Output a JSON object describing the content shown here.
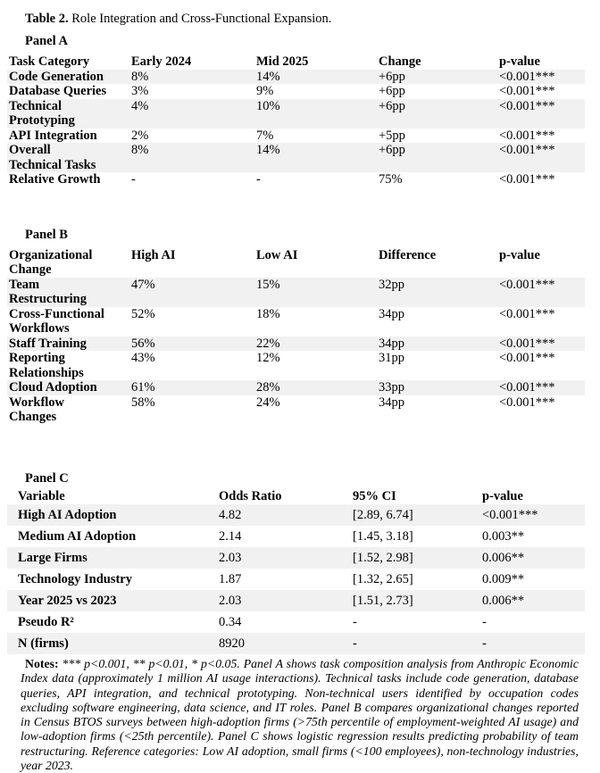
{
  "title": {
    "label": "Table 2.",
    "text": "Role Integration and Cross-Functional Expansion."
  },
  "colors": {
    "background": "#ffffff",
    "text": "#000000",
    "row_shading": "#f1f1f1"
  },
  "panels": [
    {
      "label": "Panel A",
      "columns": [
        "Task Category",
        "Early 2024",
        "Mid 2025",
        "Change",
        "p-value"
      ],
      "rows": [
        {
          "shaded": true,
          "cells": [
            "Code Generation",
            "8%",
            "14%",
            "+6pp",
            "<0.001***"
          ]
        },
        {
          "shaded": false,
          "cells": [
            "Database Queries",
            "3%",
            "9%",
            "+6pp",
            "<0.001***"
          ]
        },
        {
          "shaded": true,
          "cells": [
            "Technical\nPrototyping",
            "4%",
            "10%",
            "+6pp",
            "<0.001***"
          ]
        },
        {
          "shaded": false,
          "cells": [
            "API Integration",
            "2%",
            "7%",
            "+5pp",
            "<0.001***"
          ]
        },
        {
          "shaded": true,
          "cells": [
            "Overall\nTechnical Tasks",
            "8%",
            "14%",
            "+6pp",
            "<0.001***"
          ]
        },
        {
          "shaded": false,
          "cells": [
            "Relative Growth",
            "-",
            "-",
            "75%",
            "<0.001***"
          ]
        }
      ]
    },
    {
      "label": "Panel B",
      "columns": [
        "Organizational\nChange",
        "High AI",
        "Low AI",
        "Difference",
        "p-value"
      ],
      "rows": [
        {
          "shaded": true,
          "cells": [
            "Team\nRestructuring",
            "47%",
            "15%",
            "32pp",
            "<0.001***"
          ]
        },
        {
          "shaded": false,
          "cells": [
            "Cross-Functional\nWorkflows",
            "52%",
            "18%",
            "34pp",
            "<0.001***"
          ]
        },
        {
          "shaded": true,
          "cells": [
            "Staff Training",
            "56%",
            "22%",
            "34pp",
            "<0.001***"
          ]
        },
        {
          "shaded": false,
          "cells": [
            "Reporting\nRelationships",
            "43%",
            "12%",
            "31pp",
            "<0.001***"
          ]
        },
        {
          "shaded": true,
          "cells": [
            "Cloud Adoption",
            "61%",
            "28%",
            "33pp",
            "<0.001***"
          ]
        },
        {
          "shaded": false,
          "cells": [
            "Workflow\nChanges",
            "58%",
            "24%",
            "34pp",
            "<0.001***"
          ]
        }
      ]
    },
    {
      "label": "Panel C",
      "columns": [
        "Variable",
        "Odds Ratio",
        "95% CI",
        "p-value"
      ],
      "rows": [
        {
          "shaded": true,
          "cells": [
            "High AI Adoption",
            "4.82",
            "[2.89, 6.74]",
            "<0.001***"
          ]
        },
        {
          "shaded": false,
          "cells": [
            "Medium AI Adoption",
            "2.14",
            "[1.45, 3.18]",
            "0.003**"
          ]
        },
        {
          "shaded": true,
          "cells": [
            "Large Firms",
            "2.03",
            "[1.52, 2.98]",
            "0.006**"
          ]
        },
        {
          "shaded": false,
          "cells": [
            "Technology Industry",
            "1.87",
            "[1.32, 2.65]",
            "0.009**"
          ]
        },
        {
          "shaded": true,
          "cells": [
            "Year 2025 vs 2023",
            "2.03",
            "[1.51, 2.73]",
            "0.006**"
          ]
        },
        {
          "shaded": false,
          "cells": [
            "Pseudo R²",
            "0.34",
            "-",
            "-"
          ]
        },
        {
          "shaded": true,
          "cells": [
            "N (firms)",
            "8920",
            "-",
            "-"
          ]
        }
      ]
    }
  ],
  "notes": {
    "label": "Notes:",
    "text": "*** p<0.001, ** p<0.01, * p<0.05. Panel A shows task composition analysis from Anthropic Economic Index data (approximately 1 million AI usage interactions). Technical tasks include code generation, database queries, API integration, and technical prototyping. Non-technical users identified by occupation codes excluding software engineering, data science, and IT roles. Panel B compares organizational changes reported in Census BTOS surveys between high-adoption firms (>75th percentile of employment-weighted AI usage) and low-adoption firms (<25th percentile). Panel C shows logistic regression results predicting probability of team restructuring. Reference categories: Low AI adoption, small firms (<100 employees), non-technology industries, year 2023."
  }
}
